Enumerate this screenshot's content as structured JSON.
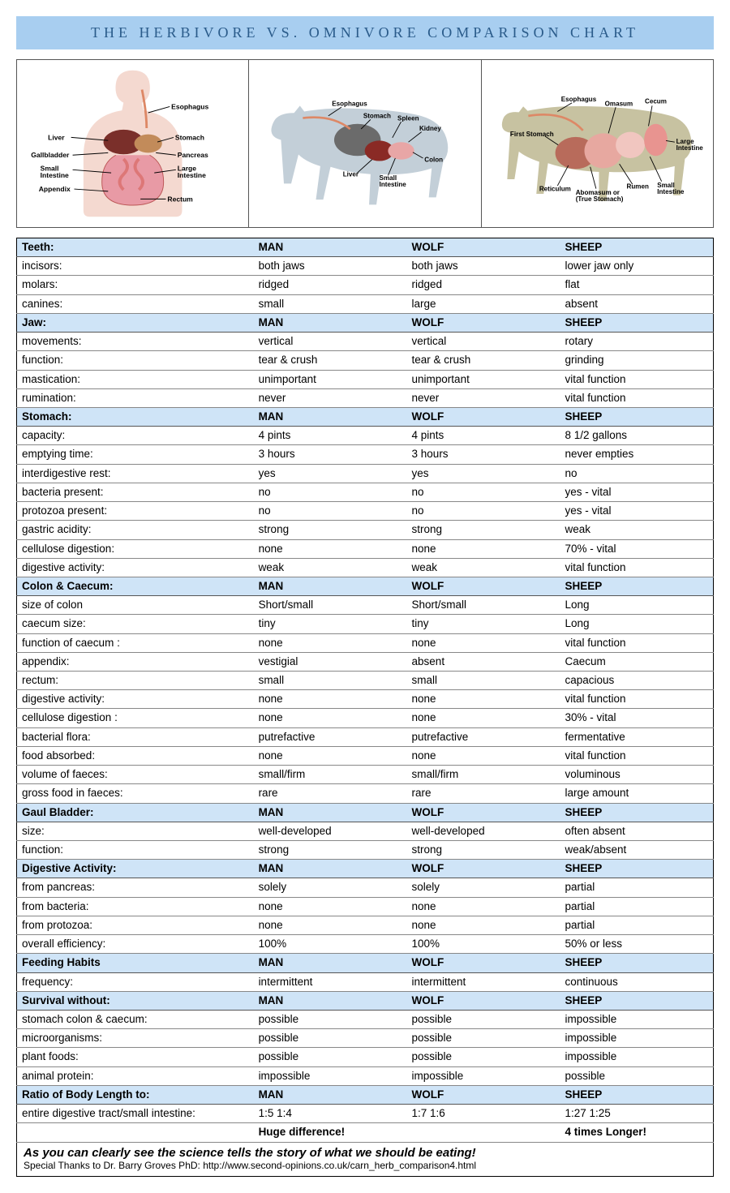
{
  "title": "the herbivore vs. omnivore comparison chart",
  "colors": {
    "title_bg": "#a8cef0",
    "title_text": "#2a5b8a",
    "section_bg": "#cfe4f7",
    "border": "#000000",
    "row_border": "#888888"
  },
  "diagrams": {
    "human": {
      "silhouette_color": "#f4d9d0",
      "labels": [
        "Esophagus",
        "Stomach",
        "Liver",
        "Pancreas",
        "Gallbladder",
        "Small Intestine",
        "Large Intestine",
        "Appendix",
        "Rectum"
      ]
    },
    "wolf": {
      "silhouette_color": "#c3cfd8",
      "labels": [
        "Esophagus",
        "Stomach",
        "Spleen",
        "Kidney",
        "Liver",
        "Small Intestine",
        "Colon"
      ]
    },
    "sheep": {
      "silhouette_color": "#c7c2a1",
      "labels": [
        "Esophagus",
        "Omasum",
        "Cecum",
        "First Stomach",
        "Large Intestine",
        "Reticulum",
        "Abomasum or (True Stomach)",
        "Rumen",
        "Small Intestine"
      ]
    }
  },
  "columns": [
    "MAN",
    "WOLF",
    "SHEEP"
  ],
  "sections": [
    {
      "header": "Teeth:",
      "rows": [
        {
          "label": "incisors:",
          "vals": [
            "both jaws",
            "both jaws",
            "lower jaw only"
          ]
        },
        {
          "label": "molars:",
          "vals": [
            "ridged",
            "ridged",
            "flat"
          ]
        },
        {
          "label": "canines:",
          "vals": [
            "small",
            "large",
            "absent"
          ]
        }
      ]
    },
    {
      "header": "Jaw:",
      "rows": [
        {
          "label": "movements:",
          "vals": [
            "vertical",
            "vertical",
            "rotary"
          ]
        },
        {
          "label": "function:",
          "vals": [
            "tear & crush",
            "tear & crush",
            "grinding"
          ]
        },
        {
          "label": "mastication:",
          "vals": [
            "unimportant",
            "unimportant",
            "vital function"
          ]
        },
        {
          "label": "rumination:",
          "vals": [
            "never",
            "never",
            "vital function"
          ]
        }
      ]
    },
    {
      "header": "Stomach:",
      "rows": [
        {
          "label": "capacity:",
          "vals": [
            "4 pints",
            "4 pints",
            "8 1/2 gallons"
          ]
        },
        {
          "label": "emptying time:",
          "vals": [
            "3 hours",
            "3 hours",
            "never empties"
          ]
        },
        {
          "label": "interdigestive rest:",
          "vals": [
            "yes",
            "yes",
            "no"
          ]
        },
        {
          "label": "bacteria present:",
          "vals": [
            "no",
            "no",
            "yes - vital"
          ]
        },
        {
          "label": "protozoa present:",
          "vals": [
            "no",
            "no",
            "yes - vital"
          ]
        },
        {
          "label": "gastric acidity:",
          "vals": [
            "strong",
            "strong",
            "weak"
          ]
        },
        {
          "label": "cellulose digestion:",
          "vals": [
            "none",
            "none",
            "70% - vital"
          ]
        },
        {
          "label": "digestive activity:",
          "vals": [
            "weak",
            "weak",
            "vital function"
          ]
        }
      ]
    },
    {
      "header": "Colon & Caecum:",
      "rows": [
        {
          "label": "size of colon",
          "vals": [
            "Short/small",
            "Short/small",
            "Long"
          ]
        },
        {
          "label": "caecum size:",
          "vals": [
            "tiny",
            "tiny",
            "Long"
          ]
        },
        {
          "label": "function of caecum :",
          "vals": [
            "none",
            "none",
            "vital function"
          ]
        },
        {
          "label": "appendix:",
          "vals": [
            "vestigial",
            "absent",
            "Caecum"
          ]
        },
        {
          "label": "rectum:",
          "vals": [
            "small",
            "small",
            "capacious"
          ]
        },
        {
          "label": "digestive activity:",
          "vals": [
            "none",
            "none",
            "vital function"
          ]
        },
        {
          "label": "cellulose digestion :",
          "vals": [
            "none",
            "none",
            "30% - vital"
          ]
        },
        {
          "label": "bacterial flora:",
          "vals": [
            "putrefactive",
            "putrefactive",
            "fermentative"
          ]
        },
        {
          "label": "food absorbed:",
          "vals": [
            "none",
            "none",
            "vital function"
          ]
        },
        {
          "label": "volume of faeces:",
          "vals": [
            "small/firm",
            "small/firm",
            "voluminous"
          ]
        },
        {
          "label": "gross food in faeces:",
          "vals": [
            "rare",
            "rare",
            "large amount"
          ]
        }
      ]
    },
    {
      "header": "Gaul Bladder:",
      "rows": [
        {
          "label": "size:",
          "vals": [
            "well-developed",
            "well-developed",
            "often absent"
          ]
        },
        {
          "label": "function:",
          "vals": [
            "strong",
            "strong",
            "weak/absent"
          ]
        }
      ]
    },
    {
      "header": "Digestive Activity:",
      "rows": [
        {
          "label": "from pancreas:",
          "vals": [
            "solely",
            "solely",
            "partial"
          ]
        },
        {
          "label": "from bacteria:",
          "vals": [
            "none",
            "none",
            "partial"
          ]
        },
        {
          "label": "from protozoa:",
          "vals": [
            "none",
            "none",
            "partial"
          ]
        },
        {
          "label": "overall efficiency:",
          "vals": [
            "100%",
            "100%",
            "50% or less"
          ]
        }
      ]
    },
    {
      "header": "Feeding Habits",
      "rows": [
        {
          "label": "frequency:",
          "vals": [
            "intermittent",
            "intermittent",
            "continuous"
          ]
        }
      ]
    },
    {
      "header": "Survival without:",
      "rows": [
        {
          "label": "stomach colon & caecum:",
          "vals": [
            "possible",
            "possible",
            "impossible"
          ]
        },
        {
          "label": "microorganisms:",
          "vals": [
            "possible",
            "possible",
            "impossible"
          ]
        },
        {
          "label": "plant foods:",
          "vals": [
            "possible",
            "possible",
            "impossible"
          ]
        },
        {
          "label": "animal protein:",
          "vals": [
            "impossible",
            "impossible",
            "possible"
          ]
        }
      ]
    },
    {
      "header": "Ratio of Body Length  to:",
      "rows": [
        {
          "label": "entire digestive tract/small intestine:",
          "vals": [
            "1:5  1:4",
            "1:7  1:6",
            "1:27  1:25"
          ]
        }
      ]
    }
  ],
  "footer_row": {
    "label": "",
    "vals": [
      "Huge difference!",
      "",
      "4 times Longer!"
    ]
  },
  "conclusion": {
    "line1": "As you can clearly see the science tells the story of what we should be eating!",
    "line2": "Special Thanks to Dr. Barry Groves PhD: http://www.second-opinions.co.uk/carn_herb_comparison4.html"
  }
}
